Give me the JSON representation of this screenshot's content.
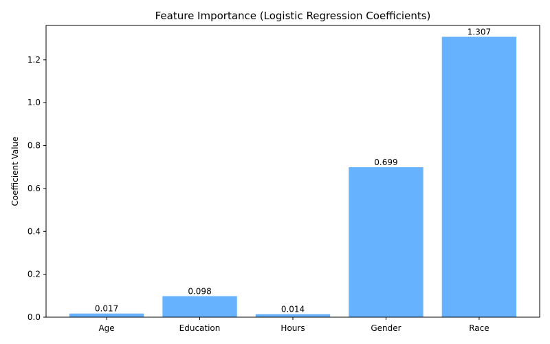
{
  "chart_data": {
    "type": "bar",
    "title": "Feature Importance (Logistic Regression Coefficients)",
    "xlabel": "",
    "ylabel": "Coefficient Value",
    "categories": [
      "Age",
      "Education",
      "Hours",
      "Gender",
      "Race"
    ],
    "values": [
      0.017,
      0.098,
      0.014,
      0.699,
      1.307
    ],
    "data_labels": [
      "0.017",
      "0.098",
      "0.014",
      "0.699",
      "1.307"
    ],
    "ylim": [
      0,
      1.36
    ],
    "yticks": [
      0.0,
      0.2,
      0.4,
      0.6,
      0.8,
      1.0,
      1.2
    ],
    "ytick_labels": [
      "0.0",
      "0.2",
      "0.4",
      "0.6",
      "0.8",
      "1.0",
      "1.2"
    ],
    "bar_color": "#66b2ff",
    "grid": false,
    "legend": "none"
  }
}
